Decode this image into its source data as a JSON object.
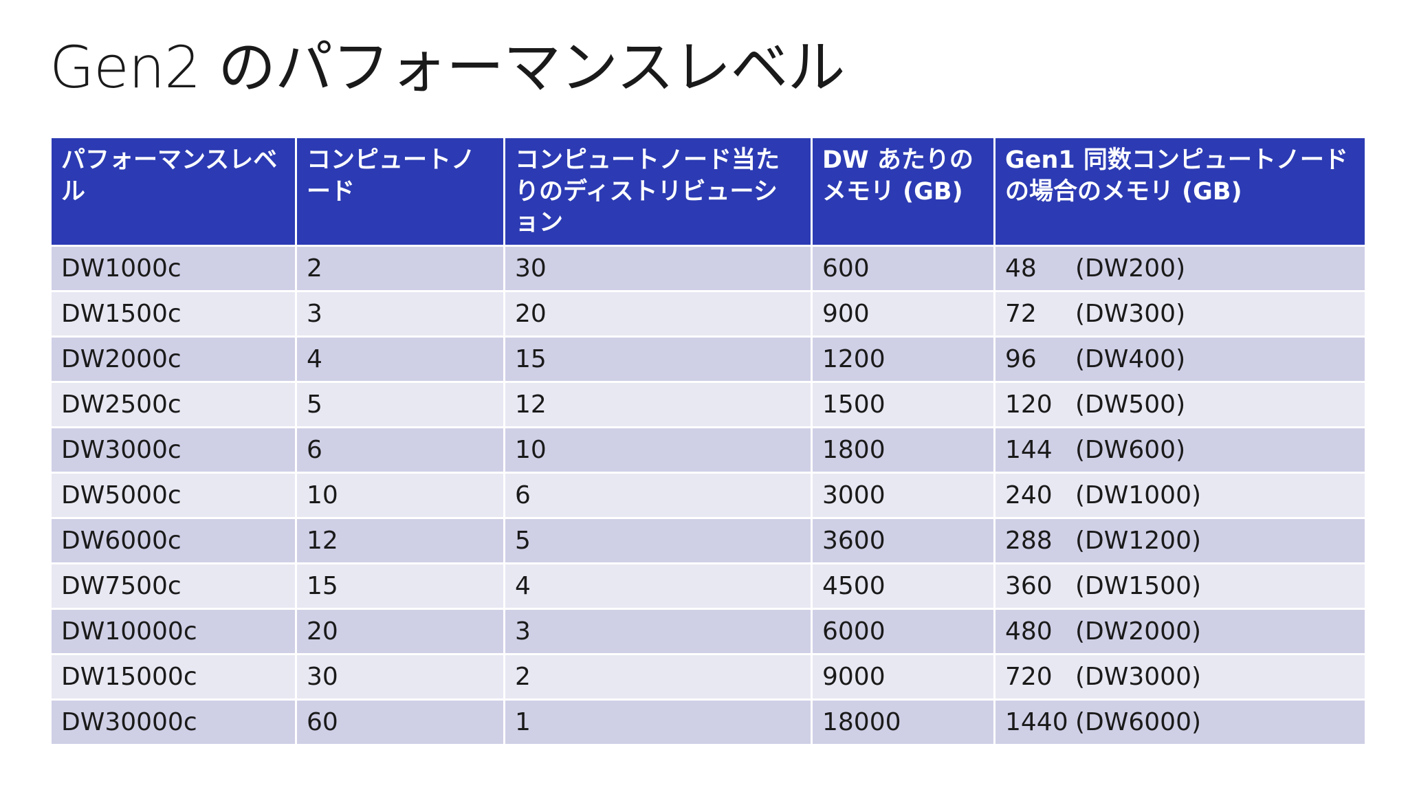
{
  "title": "Gen2 のパフォーマンスレベル",
  "table": {
    "headers": [
      "パフォーマンスレベル",
      "コンピュートノード",
      "コンピュートノード当たりのディストリビューション",
      "DW あたりのメモリ (GB)",
      "Gen1 同数コンピュートノードの場合のメモリ (GB)"
    ],
    "rows": [
      {
        "level": "DW1000c",
        "nodes": "2",
        "dist": "30",
        "mem": "600",
        "gen1_mem": "48",
        "gen1_level": "(DW200)"
      },
      {
        "level": "DW1500c",
        "nodes": "3",
        "dist": "20",
        "mem": "900",
        "gen1_mem": "72",
        "gen1_level": "(DW300)"
      },
      {
        "level": "DW2000c",
        "nodes": "4",
        "dist": "15",
        "mem": "1200",
        "gen1_mem": "96",
        "gen1_level": "(DW400)"
      },
      {
        "level": "DW2500c",
        "nodes": "5",
        "dist": "12",
        "mem": "1500",
        "gen1_mem": "120",
        "gen1_level": "(DW500)"
      },
      {
        "level": "DW3000c",
        "nodes": "6",
        "dist": "10",
        "mem": "1800",
        "gen1_mem": "144",
        "gen1_level": "(DW600)"
      },
      {
        "level": "DW5000c",
        "nodes": "10",
        "dist": "6",
        "mem": "3000",
        "gen1_mem": "240",
        "gen1_level": "(DW1000)"
      },
      {
        "level": "DW6000c",
        "nodes": "12",
        "dist": "5",
        "mem": "3600",
        "gen1_mem": "288",
        "gen1_level": "(DW1200)"
      },
      {
        "level": "DW7500c",
        "nodes": "15",
        "dist": "4",
        "mem": "4500",
        "gen1_mem": "360",
        "gen1_level": "(DW1500)"
      },
      {
        "level": "DW10000c",
        "nodes": "20",
        "dist": "3",
        "mem": "6000",
        "gen1_mem": "480",
        "gen1_level": "(DW2000)"
      },
      {
        "level": "DW15000c",
        "nodes": "30",
        "dist": "2",
        "mem": "9000",
        "gen1_mem": "720",
        "gen1_level": "(DW3000)"
      },
      {
        "level": "DW30000c",
        "nodes": "60",
        "dist": "1",
        "mem": "18000",
        "gen1_mem": "1440",
        "gen1_level": "(DW6000)"
      }
    ]
  },
  "colors": {
    "header_bg": "#2c3bb3",
    "row_odd_bg": "#cfcfe6",
    "row_even_bg": "#e8e8f3"
  }
}
